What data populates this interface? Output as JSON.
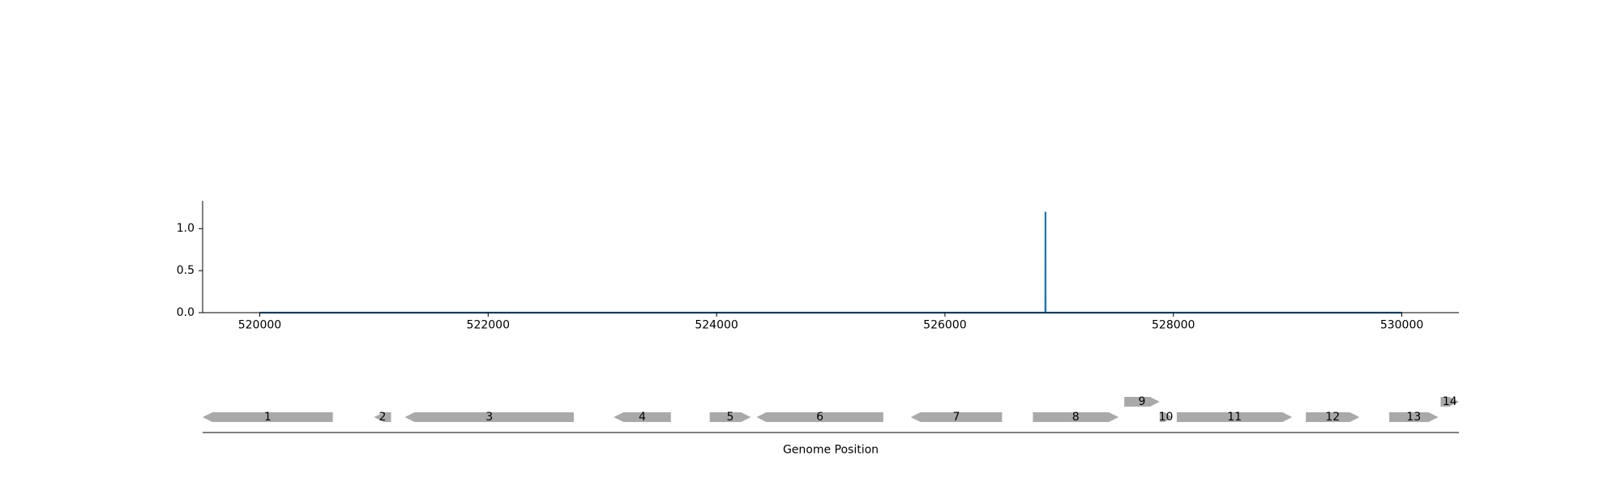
{
  "chart_data": [
    {
      "type": "line",
      "title": "",
      "xlabel": "",
      "ylabel": "",
      "xlim": [
        519500,
        530500
      ],
      "ylim": [
        0,
        1.33
      ],
      "xticks": [
        "520000",
        "522000",
        "524000",
        "526000",
        "528000",
        "530000"
      ],
      "yticks": [
        "0.0",
        "0.5",
        "1.0"
      ],
      "grid": false,
      "series": [
        {
          "color": "#1f77b4",
          "x": [
            520000,
            526879,
            526880,
            526881,
            530000
          ],
          "y": [
            0,
            0,
            1.2,
            0,
            0
          ]
        }
      ]
    },
    {
      "type": "gene-track",
      "xlabel": "Genome Position",
      "xlim": [
        519500,
        530500
      ],
      "color": "#a9a9a9",
      "genes": [
        {
          "label": "1",
          "start": 519500,
          "end": 520640,
          "strand": "-",
          "row": 0
        },
        {
          "label": "2",
          "start": 521000,
          "end": 521150,
          "strand": "-",
          "row": 0
        },
        {
          "label": "3",
          "start": 521270,
          "end": 522750,
          "strand": "-",
          "row": 0
        },
        {
          "label": "4",
          "start": 523100,
          "end": 523600,
          "strand": "-",
          "row": 0
        },
        {
          "label": "5",
          "start": 523940,
          "end": 524300,
          "strand": "+",
          "row": 0
        },
        {
          "label": "6",
          "start": 524350,
          "end": 525460,
          "strand": "-",
          "row": 0
        },
        {
          "label": "7",
          "start": 525700,
          "end": 526500,
          "strand": "-",
          "row": 0
        },
        {
          "label": "8",
          "start": 526770,
          "end": 527520,
          "strand": "+",
          "row": 0
        },
        {
          "label": "9",
          "start": 527570,
          "end": 527880,
          "strand": "+",
          "row": 1
        },
        {
          "label": "10",
          "start": 527880,
          "end": 527990,
          "strand": "+",
          "row": 0
        },
        {
          "label": "11",
          "start": 528030,
          "end": 529040,
          "strand": "+",
          "row": 0
        },
        {
          "label": "12",
          "start": 529160,
          "end": 529630,
          "strand": "+",
          "row": 0
        },
        {
          "label": "13",
          "start": 529890,
          "end": 530320,
          "strand": "+",
          "row": 0
        },
        {
          "label": "14",
          "start": 530340,
          "end": 530500,
          "strand": "+",
          "row": 1
        }
      ]
    }
  ]
}
